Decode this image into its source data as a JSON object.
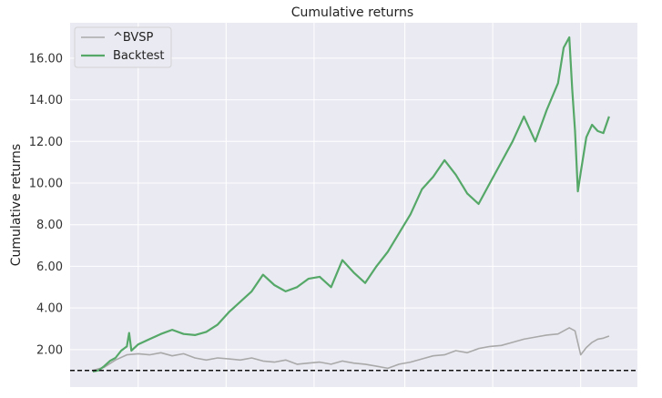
{
  "chart_data": {
    "type": "line",
    "title": "Cumulative returns",
    "xlabel": "",
    "ylabel": "Cumulative returns",
    "yticks": [
      "2.00",
      "4.00",
      "6.00",
      "8.00",
      "10.00",
      "12.00",
      "14.00",
      "16.00"
    ],
    "ylim": [
      0.2,
      17.7
    ],
    "xlim": [
      0,
      100
    ],
    "grid": true,
    "legend_position": "top-left",
    "reference_line": {
      "y": 1.0,
      "style": "dashed",
      "color": "#111111"
    },
    "colors": {
      "background": "#eaeaf2",
      "grid": "#ffffff"
    },
    "series": [
      {
        "name": "^BVSP",
        "color": "#a9a9a9",
        "x": [
          4,
          6,
          8,
          10,
          12,
          14,
          16,
          18,
          20,
          22,
          24,
          26,
          28,
          30,
          32,
          34,
          36,
          38,
          40,
          42,
          44,
          46,
          48,
          50,
          52,
          54,
          56,
          58,
          60,
          62,
          64,
          66,
          68,
          70,
          72,
          74,
          76,
          78,
          80,
          82,
          84,
          86,
          88,
          89,
          90,
          91,
          92,
          93,
          94,
          95
        ],
        "values": [
          1.0,
          1.15,
          1.5,
          1.75,
          1.8,
          1.75,
          1.85,
          1.7,
          1.8,
          1.6,
          1.5,
          1.6,
          1.55,
          1.5,
          1.6,
          1.45,
          1.4,
          1.5,
          1.3,
          1.35,
          1.4,
          1.3,
          1.45,
          1.35,
          1.3,
          1.2,
          1.1,
          1.3,
          1.4,
          1.55,
          1.7,
          1.75,
          1.95,
          1.85,
          2.05,
          2.15,
          2.2,
          2.35,
          2.5,
          2.6,
          2.7,
          2.75,
          3.05,
          2.9,
          1.75,
          2.1,
          2.35,
          2.5,
          2.55,
          2.65
        ]
      },
      {
        "name": "Backtest",
        "color": "#55a868",
        "x": [
          4,
          5,
          6,
          7,
          8,
          9,
          10,
          10.4,
          10.8,
          12,
          14,
          16,
          18,
          20,
          22,
          24,
          26,
          28,
          30,
          32,
          34,
          36,
          38,
          40,
          42,
          44,
          46,
          48,
          50,
          52,
          54,
          56,
          58,
          60,
          62,
          64,
          66,
          68,
          70,
          72,
          74,
          76,
          78,
          79,
          80,
          82,
          84,
          86,
          87,
          88,
          88.5,
          89,
          89.5,
          90,
          91,
          92,
          93,
          94,
          95
        ],
        "values": [
          0.95,
          1.0,
          1.2,
          1.45,
          1.6,
          1.95,
          2.15,
          2.8,
          1.95,
          2.25,
          2.5,
          2.75,
          2.95,
          2.75,
          2.7,
          2.85,
          3.2,
          3.8,
          4.3,
          4.8,
          5.6,
          5.1,
          4.8,
          5.0,
          5.4,
          5.5,
          5.0,
          6.3,
          5.7,
          5.2,
          6.0,
          6.7,
          7.6,
          8.5,
          9.7,
          10.3,
          11.1,
          10.4,
          9.5,
          9.0,
          10.0,
          11.0,
          12.0,
          12.6,
          13.2,
          12.0,
          13.5,
          14.8,
          16.5,
          17.0,
          14.5,
          12.5,
          9.6,
          10.5,
          12.2,
          12.8,
          12.5,
          12.4,
          13.2
        ]
      }
    ]
  }
}
